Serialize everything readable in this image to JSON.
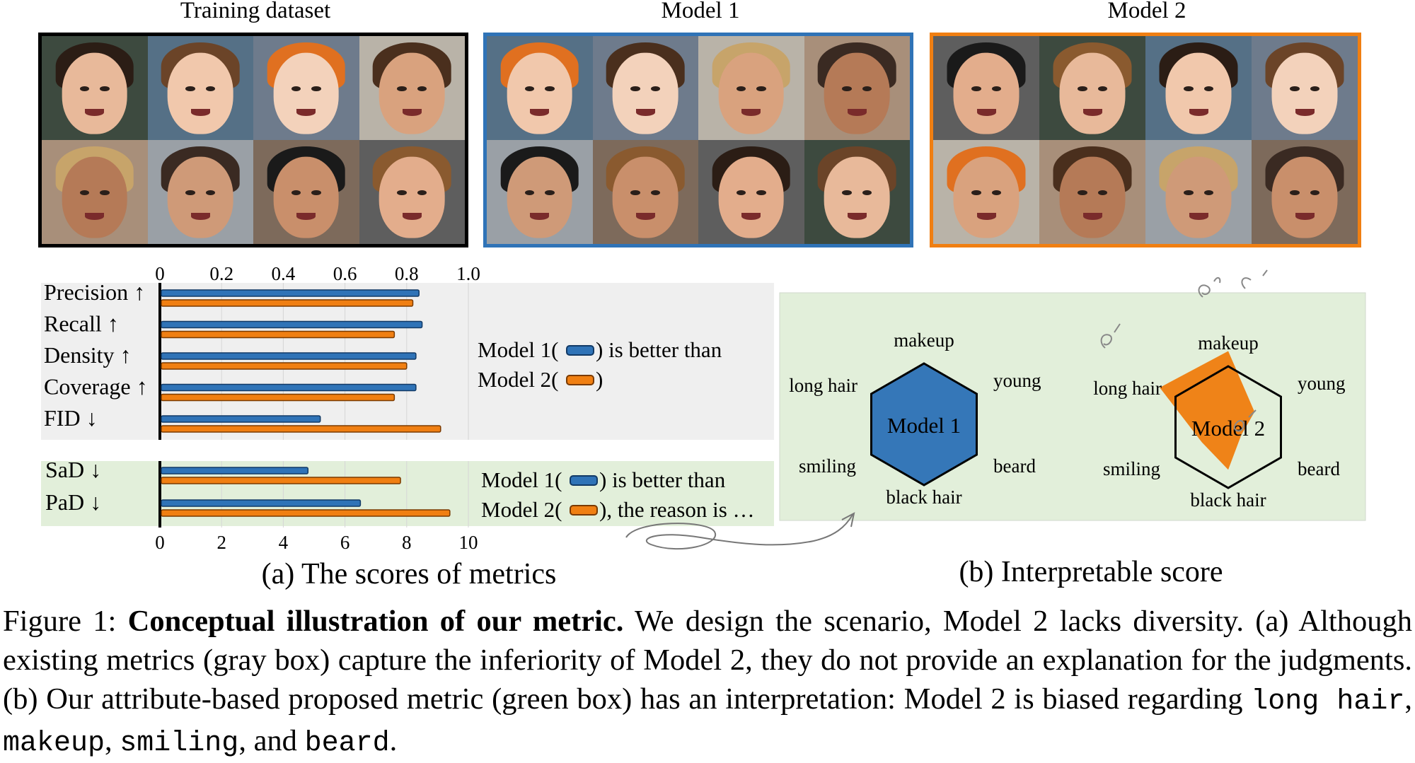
{
  "galleries": {
    "training": {
      "title": "Training dataset"
    },
    "model1": {
      "title": "Model 1"
    },
    "model2": {
      "title": "Model 2"
    }
  },
  "colors": {
    "model1": "#2f73b7",
    "model2": "#f07f12",
    "gray_box": "#efefef",
    "green_box": "#e2efda",
    "training_border": "#000000"
  },
  "chart_data": [
    {
      "type": "bar",
      "orientation": "horizontal",
      "title": "",
      "categories": [
        "Precision ↑",
        "Recall ↑",
        "Density ↑",
        "Coverage ↑",
        "FID ↓"
      ],
      "xlim": [
        0,
        1.0
      ],
      "xticks": [
        "0",
        "0.2",
        "0.4",
        "0.6",
        "0.8",
        "1.0"
      ],
      "series": [
        {
          "name": "Model 1",
          "values": [
            0.84,
            0.85,
            0.83,
            0.83,
            0.52
          ]
        },
        {
          "name": "Model 2",
          "values": [
            0.82,
            0.76,
            0.8,
            0.76,
            0.91
          ]
        }
      ],
      "annotation": [
        "Model 1(",
        ") is better than",
        "Model 2(",
        ")"
      ]
    },
    {
      "type": "bar",
      "orientation": "horizontal",
      "categories": [
        "SaD ↓",
        "PaD ↓"
      ],
      "xlim": [
        0,
        10
      ],
      "xticks": [
        "0",
        "2",
        "4",
        "6",
        "8",
        "10"
      ],
      "series": [
        {
          "name": "Model 1",
          "values": [
            4.8,
            6.5
          ]
        },
        {
          "name": "Model 2",
          "values": [
            7.8,
            9.4
          ]
        }
      ],
      "annotation": [
        "Model 1(",
        ") is better than",
        "Model 2(",
        "), the reason is …"
      ]
    },
    {
      "type": "radar",
      "attributes": [
        "makeup",
        "young",
        "beard",
        "black hair",
        "smiling",
        "long hair"
      ],
      "charts": [
        {
          "label": "Model 1",
          "values": [
            1.0,
            1.0,
            1.0,
            1.0,
            1.0,
            1.0
          ]
        },
        {
          "label": "Model 2",
          "values": [
            1.25,
            0.5,
            0.25,
            0.7,
            0.5,
            1.3
          ]
        }
      ]
    }
  ],
  "subcaptions": {
    "a": "(a) The scores of metrics",
    "b": "(b) Interpretable score"
  },
  "caption": {
    "prefix": "Figure 1: ",
    "bold": "Conceptual illustration of our metric.",
    "text1": " We design the scenario, Model 2 lacks diversity. (a) Although existing metrics (gray box) capture the inferiority of Model 2, they do not provide an explanation for the judgments. (b) Our attribute-based proposed metric (green box) has an interpretation: Model 2 is biased regarding ",
    "attr1": "long hair",
    "sep1": ", ",
    "attr2": "makeup",
    "sep2": ", ",
    "attr3": "smiling",
    "sep3": ", and ",
    "attr4": "beard",
    "end": "."
  }
}
